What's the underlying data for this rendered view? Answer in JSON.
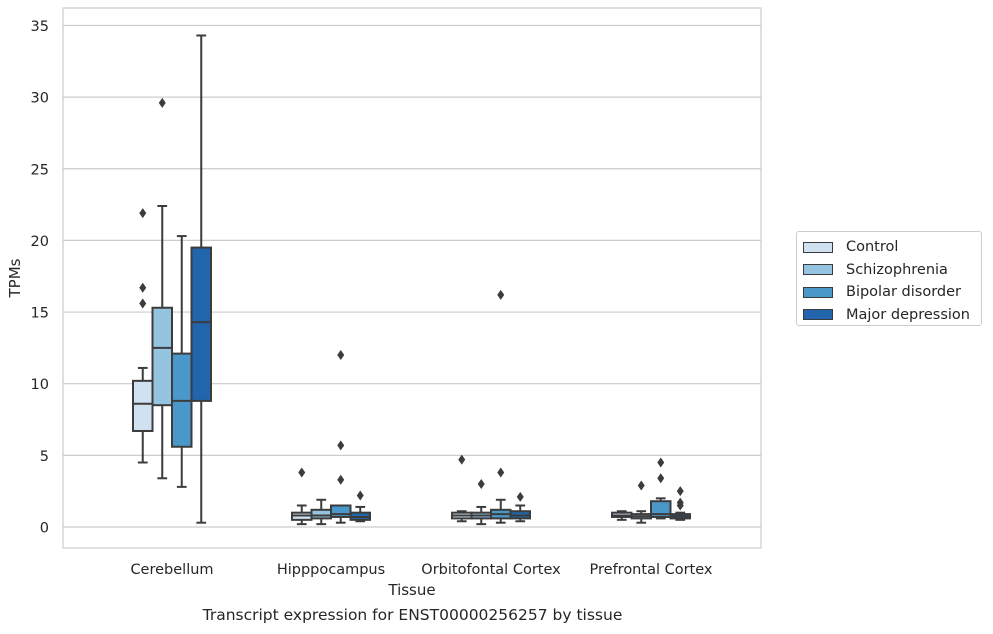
{
  "caption": "Transcript expression for ENST00000256257 by tissue",
  "chart_data": {
    "type": "boxplot",
    "xlabel": "Tissue",
    "ylabel": "TPMs",
    "ylim": [
      -1.5,
      36
    ],
    "yticks": [
      0,
      5,
      10,
      15,
      20,
      25,
      30,
      35
    ],
    "grid": "horizontal",
    "legend_position": "right",
    "categories": [
      "Cerebellum",
      "Hipppocampus",
      "Orbitofontal Cortex",
      "Prefrontal Cortex"
    ],
    "series": [
      {
        "name": "Control",
        "color": "#d0e1f2",
        "boxes": [
          {
            "whisker_low": 4.5,
            "q1": 6.7,
            "median": 8.6,
            "q3": 10.2,
            "whisker_high": 11.1,
            "outliers": [
              21.9,
              16.7,
              15.6
            ]
          },
          {
            "whisker_low": 0.2,
            "q1": 0.5,
            "median": 0.8,
            "q3": 1.0,
            "whisker_high": 1.5,
            "outliers": [
              3.8
            ]
          },
          {
            "whisker_low": 0.4,
            "q1": 0.6,
            "median": 0.8,
            "q3": 1.0,
            "whisker_high": 1.1,
            "outliers": [
              4.7
            ]
          },
          {
            "whisker_low": 0.5,
            "q1": 0.7,
            "median": 0.8,
            "q3": 1.0,
            "whisker_high": 1.1,
            "outliers": []
          }
        ]
      },
      {
        "name": "Schizophrenia",
        "color": "#94c4df",
        "boxes": [
          {
            "whisker_low": 3.4,
            "q1": 8.5,
            "median": 12.5,
            "q3": 15.3,
            "whisker_high": 22.4,
            "outliers": [
              29.6
            ]
          },
          {
            "whisker_low": 0.2,
            "q1": 0.6,
            "median": 0.8,
            "q3": 1.2,
            "whisker_high": 1.9,
            "outliers": []
          },
          {
            "whisker_low": 0.2,
            "q1": 0.6,
            "median": 0.8,
            "q3": 1.0,
            "whisker_high": 1.4,
            "outliers": [
              3.0
            ]
          },
          {
            "whisker_low": 0.3,
            "q1": 0.6,
            "median": 0.75,
            "q3": 0.9,
            "whisker_high": 1.1,
            "outliers": [
              2.9
            ]
          }
        ]
      },
      {
        "name": "Bipolar disorder",
        "color": "#4a98c9",
        "boxes": [
          {
            "whisker_low": 2.8,
            "q1": 5.6,
            "median": 8.8,
            "q3": 12.1,
            "whisker_high": 20.3,
            "outliers": []
          },
          {
            "whisker_low": 0.3,
            "q1": 0.7,
            "median": 0.9,
            "q3": 1.5,
            "whisker_high": 1.5,
            "outliers": [
              12.0,
              5.7,
              3.3
            ]
          },
          {
            "whisker_low": 0.3,
            "q1": 0.6,
            "median": 0.9,
            "q3": 1.2,
            "whisker_high": 1.9,
            "outliers": [
              16.2,
              3.8
            ]
          },
          {
            "whisker_low": 0.6,
            "q1": 0.7,
            "median": 0.9,
            "q3": 1.8,
            "whisker_high": 2.0,
            "outliers": [
              4.5,
              3.4
            ]
          }
        ]
      },
      {
        "name": "Major depression",
        "color": "#2166ac",
        "boxes": [
          {
            "whisker_low": 0.3,
            "q1": 8.8,
            "median": 14.3,
            "q3": 19.5,
            "whisker_high": 34.3,
            "outliers": []
          },
          {
            "whisker_low": 0.4,
            "q1": 0.5,
            "median": 0.7,
            "q3": 1.0,
            "whisker_high": 1.4,
            "outliers": [
              2.2
            ]
          },
          {
            "whisker_low": 0.4,
            "q1": 0.6,
            "median": 0.8,
            "q3": 1.1,
            "whisker_high": 1.5,
            "outliers": [
              2.1
            ]
          },
          {
            "whisker_low": 0.5,
            "q1": 0.6,
            "median": 0.75,
            "q3": 0.9,
            "whisker_high": 1.0,
            "outliers": [
              2.5,
              1.7,
              1.5
            ]
          }
        ]
      }
    ]
  }
}
